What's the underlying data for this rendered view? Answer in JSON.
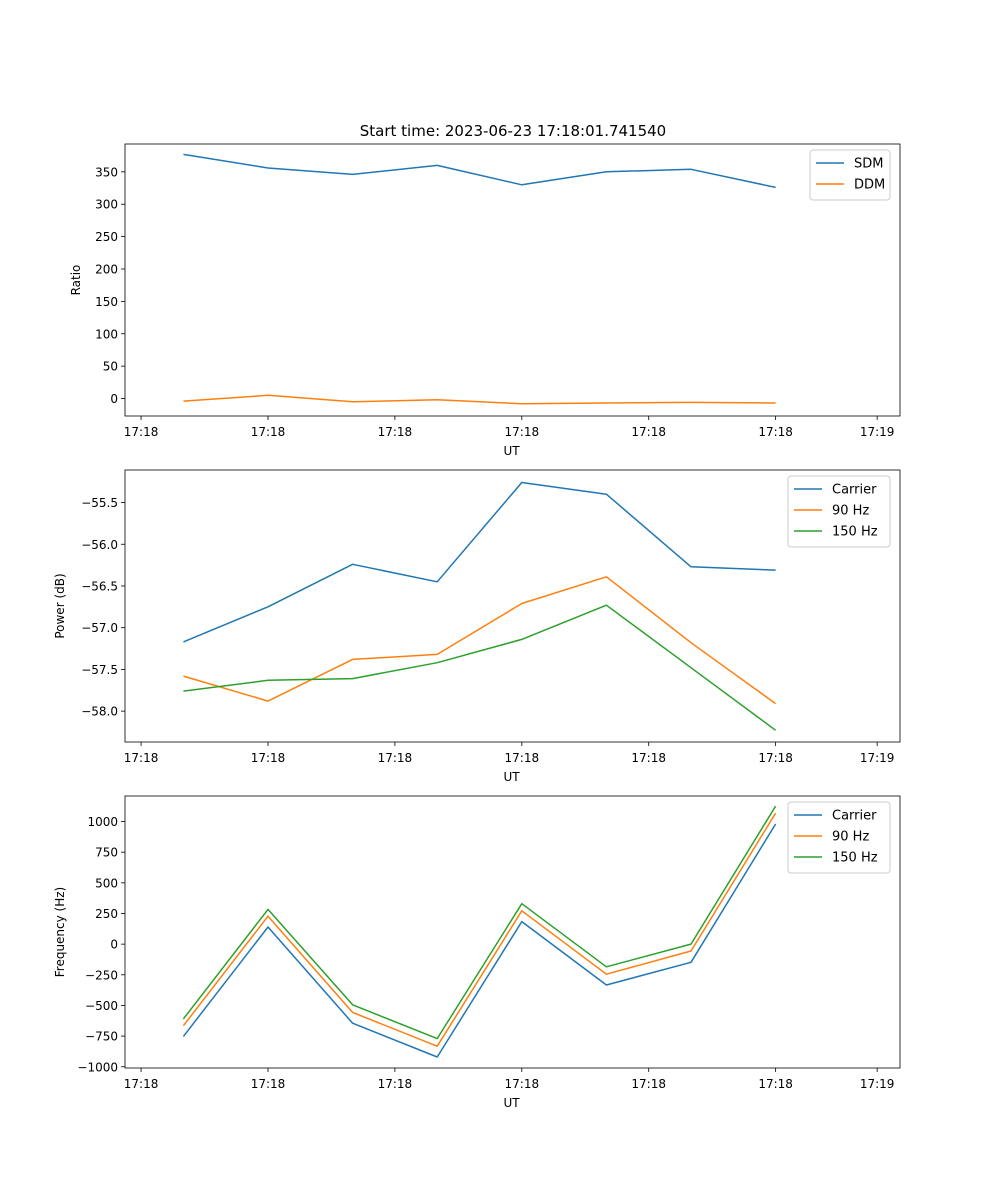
{
  "figure_title": "Start time: 2023-06-23 17:18:01.741540",
  "chart_data": [
    {
      "type": "line",
      "title": "Start time: 2023-06-23 17:18:01.741540",
      "xlabel": "UT",
      "ylabel": "Ratio",
      "x_tick_labels": [
        "17:18",
        "17:18",
        "17:18",
        "17:18",
        "17:18",
        "17:18",
        "17:19"
      ],
      "x": [
        1,
        2,
        3,
        4,
        5,
        6,
        7,
        8
      ],
      "xlim": [
        0.31,
        9.47
      ],
      "ylim": [
        -27,
        393
      ],
      "y_ticks": [
        0,
        50,
        100,
        150,
        200,
        250,
        300,
        350
      ],
      "legend": "top-right",
      "series": [
        {
          "name": "SDM",
          "color": "#1f77b4",
          "values": [
            377,
            356,
            346,
            360,
            330,
            350,
            354,
            326
          ]
        },
        {
          "name": "DDM",
          "color": "#ff7f0e",
          "values": [
            -4,
            5,
            -5,
            -2,
            -8,
            -7,
            -6,
            -7
          ]
        }
      ]
    },
    {
      "type": "line",
      "xlabel": "UT",
      "ylabel": "Power (dB)",
      "x_tick_labels": [
        "17:18",
        "17:18",
        "17:18",
        "17:18",
        "17:18",
        "17:18",
        "17:19"
      ],
      "x": [
        1,
        2,
        3,
        4,
        5,
        6,
        7,
        8
      ],
      "xlim": [
        0.31,
        9.47
      ],
      "ylim": [
        -58.37,
        -55.11
      ],
      "y_ticks": [
        -58.0,
        -57.5,
        -57.0,
        -56.5,
        -56.0,
        -55.5
      ],
      "y_tick_labels": [
        "−58.0",
        "−57.5",
        "−57.0",
        "−56.5",
        "−56.0",
        "−55.5"
      ],
      "legend": "top-right",
      "series": [
        {
          "name": "Carrier",
          "color": "#1f77b4",
          "values": [
            -57.17,
            -56.75,
            -56.24,
            -56.45,
            -55.26,
            -55.4,
            -56.27,
            -56.31
          ]
        },
        {
          "name": "90 Hz",
          "color": "#ff7f0e",
          "values": [
            -57.58,
            -57.88,
            -57.38,
            -57.32,
            -56.71,
            -56.39,
            -57.18,
            -57.91
          ]
        },
        {
          "name": "150 Hz",
          "color": "#2ca02c",
          "values": [
            -57.76,
            -57.63,
            -57.61,
            -57.42,
            -57.14,
            -56.73,
            -57.48,
            -58.23
          ]
        }
      ]
    },
    {
      "type": "line",
      "xlabel": "UT",
      "ylabel": "Frequency (Hz)",
      "x_tick_labels": [
        "17:18",
        "17:18",
        "17:18",
        "17:18",
        "17:18",
        "17:18",
        "17:19"
      ],
      "x": [
        1,
        2,
        3,
        4,
        5,
        6,
        7,
        8
      ],
      "xlim": [
        0.31,
        9.47
      ],
      "ylim": [
        -1010,
        1208
      ],
      "y_ticks": [
        -1000,
        -750,
        -500,
        -250,
        0,
        250,
        500,
        750,
        1000
      ],
      "y_tick_labels": [
        "−1000",
        "−750",
        "−500",
        "−250",
        "0",
        "250",
        "500",
        "750",
        "1000"
      ],
      "legend": "top-right",
      "series": [
        {
          "name": "Carrier",
          "color": "#1f77b4",
          "values": [
            -752,
            140,
            -645,
            -920,
            184,
            -333,
            -148,
            980
          ]
        },
        {
          "name": "90 Hz",
          "color": "#ff7f0e",
          "values": [
            -665,
            228,
            -557,
            -832,
            272,
            -245,
            -56,
            1068
          ]
        },
        {
          "name": "150 Hz",
          "color": "#2ca02c",
          "values": [
            -610,
            283,
            -495,
            -770,
            330,
            -185,
            0,
            1125
          ]
        }
      ]
    }
  ]
}
